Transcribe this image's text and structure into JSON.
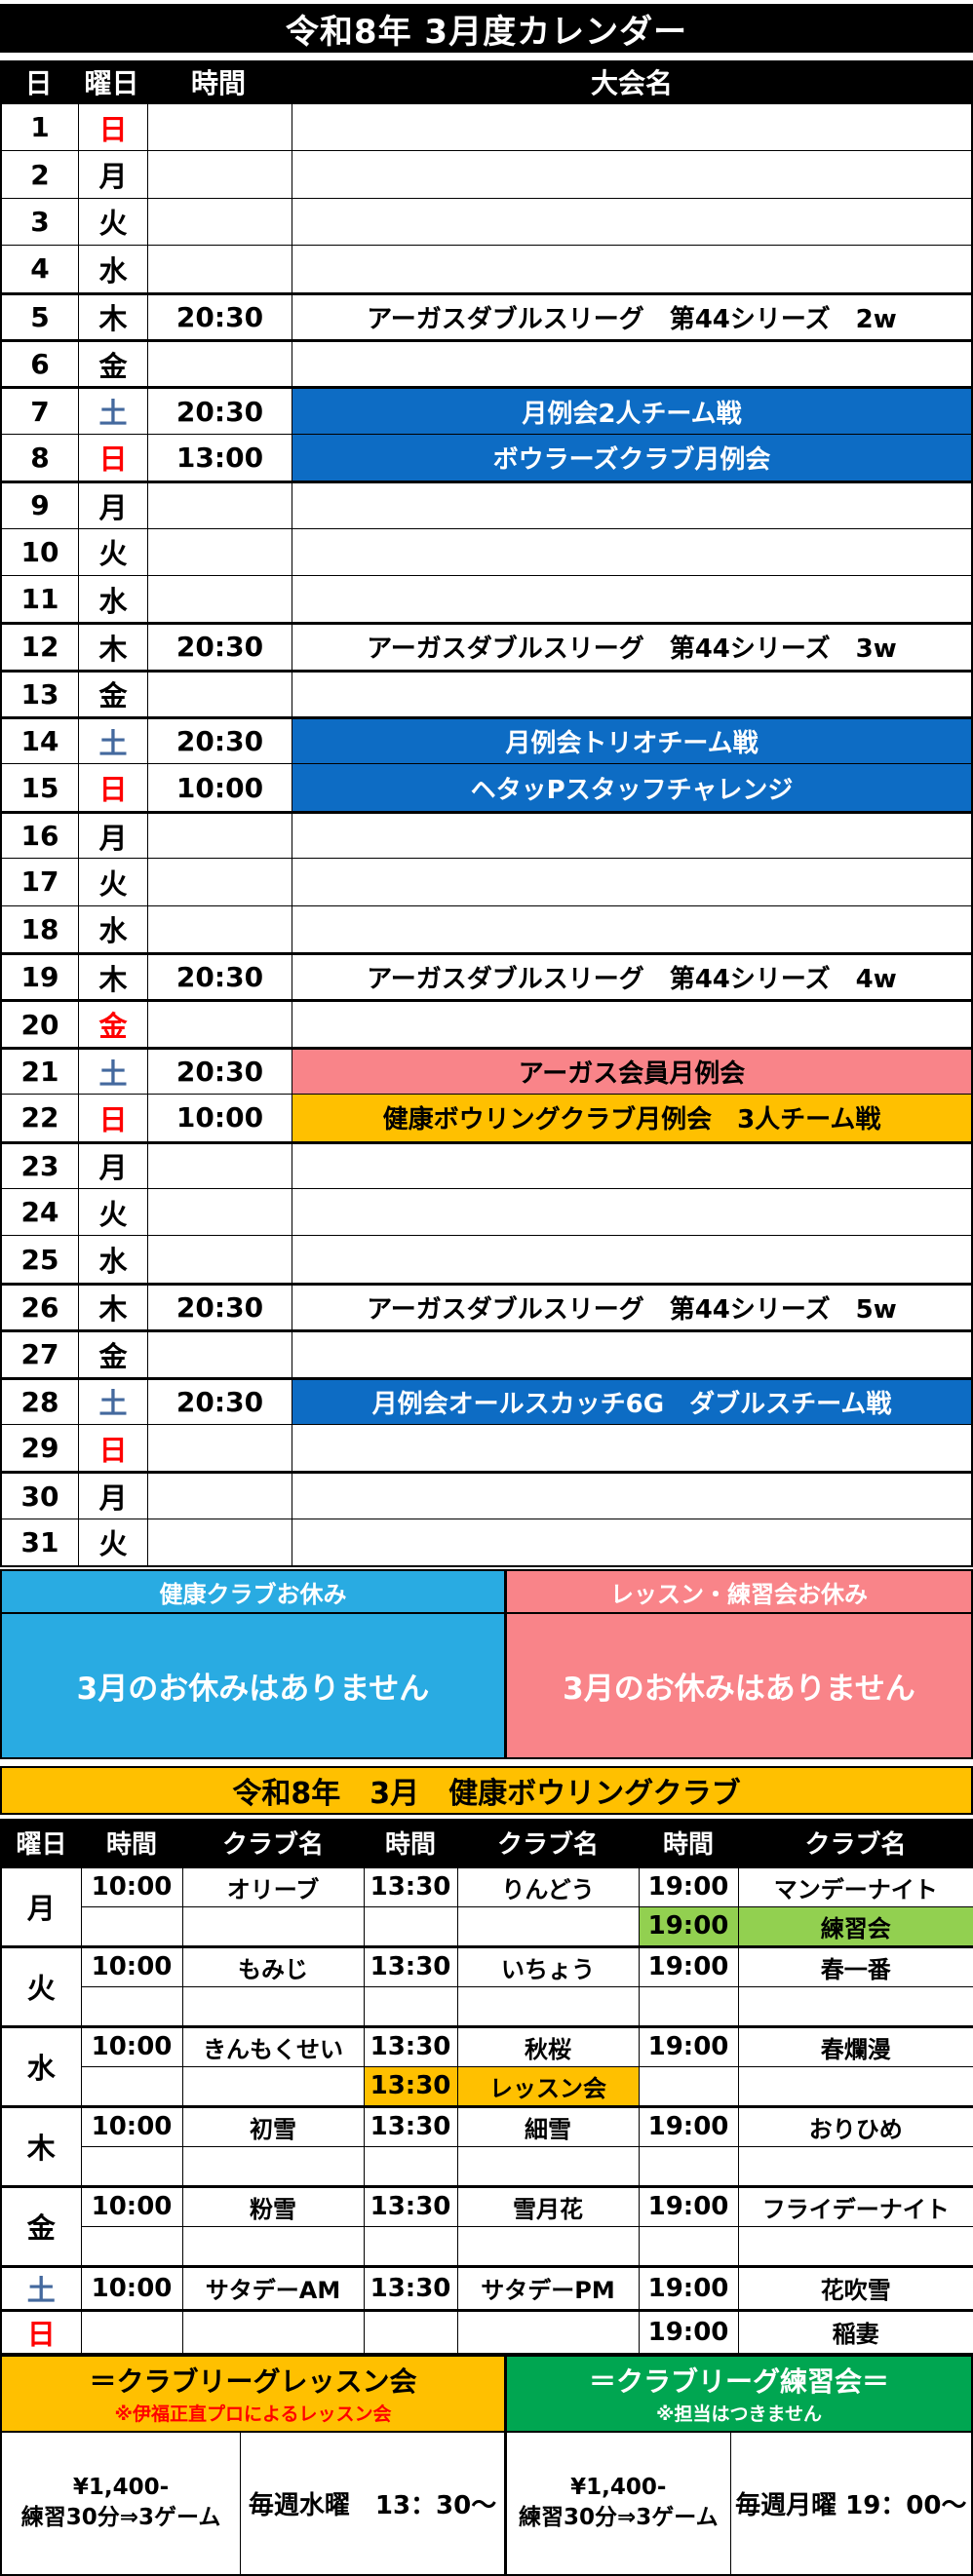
{
  "title": "令和8年 3月度カレンダー",
  "calendar": {
    "headers": {
      "day": "日",
      "weekday": "曜日",
      "time": "時間",
      "event": "大会名"
    },
    "rows": [
      {
        "d": 1,
        "w": "日",
        "wc": "r",
        "t": "",
        "e": "",
        "bg": "",
        "sep": false
      },
      {
        "d": 2,
        "w": "月",
        "wc": "",
        "t": "",
        "e": "",
        "bg": "",
        "sep": false
      },
      {
        "d": 3,
        "w": "火",
        "wc": "",
        "t": "",
        "e": "",
        "bg": "",
        "sep": false
      },
      {
        "d": 4,
        "w": "水",
        "wc": "",
        "t": "",
        "e": "",
        "bg": "",
        "sep": false
      },
      {
        "d": 5,
        "w": "木",
        "wc": "",
        "t": "20:30",
        "e": "アーガスダブルスリーグ　第44シリーズ　2w",
        "bg": "",
        "sep": true
      },
      {
        "d": 6,
        "w": "金",
        "wc": "",
        "t": "",
        "e": "",
        "bg": "",
        "sep": true
      },
      {
        "d": 7,
        "w": "土",
        "wc": "b",
        "t": "20:30",
        "e": "月例会2人チーム戦",
        "bg": "blue",
        "sep": true
      },
      {
        "d": 8,
        "w": "日",
        "wc": "r",
        "t": "13:00",
        "e": "ボウラーズクラブ月例会",
        "bg": "blue",
        "sep": false
      },
      {
        "d": 9,
        "w": "月",
        "wc": "",
        "t": "",
        "e": "",
        "bg": "",
        "sep": true
      },
      {
        "d": 10,
        "w": "火",
        "wc": "",
        "t": "",
        "e": "",
        "bg": "",
        "sep": false
      },
      {
        "d": 11,
        "w": "水",
        "wc": "",
        "t": "",
        "e": "",
        "bg": "",
        "sep": false
      },
      {
        "d": 12,
        "w": "木",
        "wc": "",
        "t": "20:30",
        "e": "アーガスダブルスリーグ　第44シリーズ　3w",
        "bg": "",
        "sep": true
      },
      {
        "d": 13,
        "w": "金",
        "wc": "",
        "t": "",
        "e": "",
        "bg": "",
        "sep": true
      },
      {
        "d": 14,
        "w": "土",
        "wc": "b",
        "t": "20:30",
        "e": "月例会トリオチーム戦",
        "bg": "blue",
        "sep": true
      },
      {
        "d": 15,
        "w": "日",
        "wc": "r",
        "t": "10:00",
        "e": "ヘタッPスタッフチャレンジ",
        "bg": "blue",
        "sep": false
      },
      {
        "d": 16,
        "w": "月",
        "wc": "",
        "t": "",
        "e": "",
        "bg": "",
        "sep": true
      },
      {
        "d": 17,
        "w": "火",
        "wc": "",
        "t": "",
        "e": "",
        "bg": "",
        "sep": false
      },
      {
        "d": 18,
        "w": "水",
        "wc": "",
        "t": "",
        "e": "",
        "bg": "",
        "sep": false
      },
      {
        "d": 19,
        "w": "木",
        "wc": "",
        "t": "20:30",
        "e": "アーガスダブルスリーグ　第44シリーズ　4w",
        "bg": "",
        "sep": true
      },
      {
        "d": 20,
        "w": "金",
        "wc": "r",
        "t": "",
        "e": "",
        "bg": "",
        "sep": true
      },
      {
        "d": 21,
        "w": "土",
        "wc": "b",
        "t": "20:30",
        "e": "アーガス会員月例会",
        "bg": "pink",
        "sep": true
      },
      {
        "d": 22,
        "w": "日",
        "wc": "r",
        "t": "10:00",
        "e": "健康ボウリングクラブ月例会　3人チーム戦",
        "bg": "gold",
        "sep": false
      },
      {
        "d": 23,
        "w": "月",
        "wc": "",
        "t": "",
        "e": "",
        "bg": "",
        "sep": true
      },
      {
        "d": 24,
        "w": "火",
        "wc": "",
        "t": "",
        "e": "",
        "bg": "",
        "sep": false
      },
      {
        "d": 25,
        "w": "水",
        "wc": "",
        "t": "",
        "e": "",
        "bg": "",
        "sep": false
      },
      {
        "d": 26,
        "w": "木",
        "wc": "",
        "t": "20:30",
        "e": "アーガスダブルスリーグ　第44シリーズ　5w",
        "bg": "",
        "sep": true
      },
      {
        "d": 27,
        "w": "金",
        "wc": "",
        "t": "",
        "e": "",
        "bg": "",
        "sep": true
      },
      {
        "d": 28,
        "w": "土",
        "wc": "b",
        "t": "20:30",
        "e": "月例会オールスカッチ6G　ダブルスチーム戦",
        "bg": "blue",
        "sep": true
      },
      {
        "d": 29,
        "w": "日",
        "wc": "r",
        "t": "",
        "e": "",
        "bg": "",
        "sep": false
      },
      {
        "d": 30,
        "w": "月",
        "wc": "",
        "t": "",
        "e": "",
        "bg": "",
        "sep": true
      },
      {
        "d": 31,
        "w": "火",
        "wc": "",
        "t": "",
        "e": "",
        "bg": "",
        "sep": false
      }
    ]
  },
  "closures": {
    "left": {
      "title": "健康クラブお休み",
      "body": "3月のお休みはありません"
    },
    "right": {
      "title": "レッスン・練習会お休み",
      "body": "3月のお休みはありません"
    }
  },
  "club": {
    "title": "令和8年　3月　健康ボウリングクラブ",
    "headers": [
      "曜日",
      "時間",
      "クラブ名",
      "時間",
      "クラブ名",
      "時間",
      "クラブ名"
    ],
    "groups": [
      {
        "weekday": "月",
        "wc": "",
        "rows": [
          [
            {
              "t": "10:00",
              "n": "オリーブ"
            },
            {
              "t": "13:30",
              "n": "りんどう"
            },
            {
              "t": "19:00",
              "n": "マンデーナイト"
            }
          ],
          [
            null,
            null,
            {
              "t": "19:00",
              "n": "練習会",
              "bg": "green"
            }
          ]
        ]
      },
      {
        "weekday": "火",
        "wc": "",
        "rows": [
          [
            {
              "t": "10:00",
              "n": "もみじ"
            },
            {
              "t": "13:30",
              "n": "いちょう"
            },
            {
              "t": "19:00",
              "n": "春一番"
            }
          ],
          [
            null,
            null,
            null
          ]
        ]
      },
      {
        "weekday": "水",
        "wc": "",
        "rows": [
          [
            {
              "t": "10:00",
              "n": "きんもくせい"
            },
            {
              "t": "13:30",
              "n": "秋桜"
            },
            {
              "t": "19:00",
              "n": "春爛漫"
            }
          ],
          [
            null,
            {
              "t": "13:30",
              "n": "レッスン会",
              "bg": "gold"
            },
            null
          ]
        ]
      },
      {
        "weekday": "木",
        "wc": "",
        "rows": [
          [
            {
              "t": "10:00",
              "n": "初雪"
            },
            {
              "t": "13:30",
              "n": "細雪"
            },
            {
              "t": "19:00",
              "n": "おりひめ"
            }
          ],
          [
            null,
            null,
            null
          ]
        ]
      },
      {
        "weekday": "金",
        "wc": "",
        "rows": [
          [
            {
              "t": "10:00",
              "n": "粉雪"
            },
            {
              "t": "13:30",
              "n": "雪月花"
            },
            {
              "t": "19:00",
              "n": "フライデーナイト"
            }
          ],
          [
            null,
            null,
            null
          ]
        ]
      },
      {
        "weekday": "土",
        "wc": "b",
        "rows": [
          [
            {
              "t": "10:00",
              "n": "サタデーAM"
            },
            {
              "t": "13:30",
              "n": "サタデーPM"
            },
            {
              "t": "19:00",
              "n": "花吹雪"
            }
          ]
        ]
      },
      {
        "weekday": "日",
        "wc": "r",
        "rows": [
          [
            null,
            null,
            {
              "t": "19:00",
              "n": "稲妻"
            }
          ]
        ]
      }
    ]
  },
  "bottom": {
    "lesson": {
      "title": "＝クラブリーグレッスン会",
      "subtitle": "※伊福正直プロによるレッスン会",
      "fee_line1": "¥1,400-",
      "fee_line2": "練習30分⇒3ゲーム",
      "schedule": "毎週水曜　13：30～"
    },
    "practice": {
      "title": "＝クラブリーグ練習会＝",
      "subtitle": "※担当はつきません",
      "fee_line1": "¥1,400-",
      "fee_line2": "練習30分⇒3ゲーム",
      "schedule": "毎週月曜 19：00～"
    }
  },
  "colors": {
    "event_blue": "#0D6CC4",
    "event_pink": "#F98489",
    "event_gold": "#FFC000",
    "closure_cyan": "#29ABE2",
    "closure_pink": "#F98489",
    "practice_green": "#00A651",
    "cell_light_green": "#92D050",
    "saturday_blue": "#44699E",
    "sunday_red": "#FF0000"
  }
}
